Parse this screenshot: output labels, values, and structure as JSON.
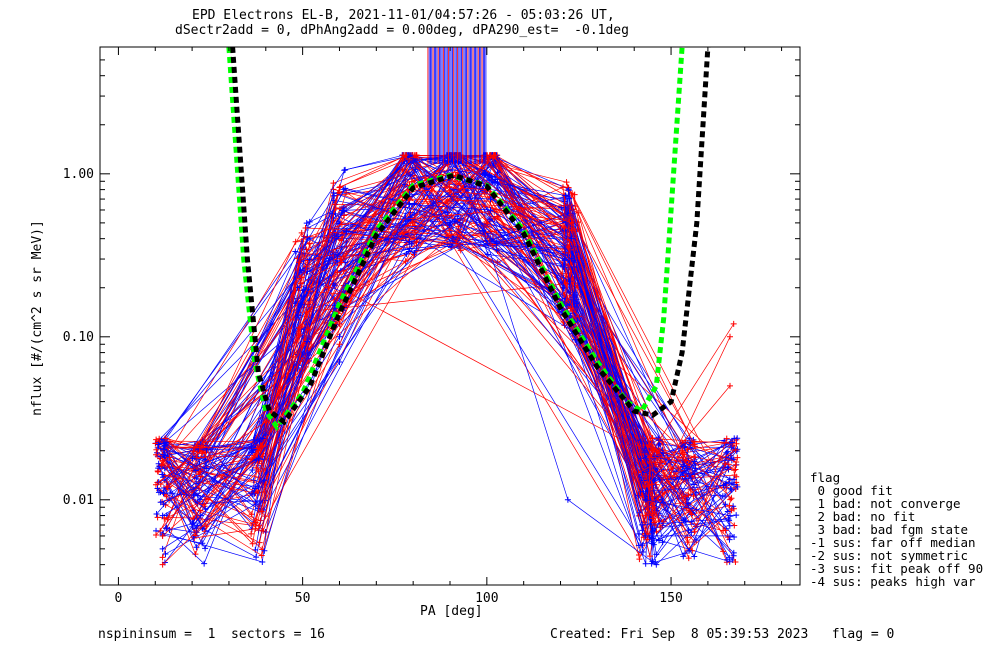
{
  "title_line1": "EPD Electrons EL-B, 2021-11-01/04:57:26 - 05:03:26 UT,",
  "title_line2": "dSectr2add = 0, dPhAng2add = 0.00deg, dPA290_est=  -0.1deg",
  "xlabel": "PA [deg]",
  "ylabel": "nflux [#/(cm^2 s sr MeV)]",
  "footer_left": "nspininsum =  1  sectors = 16",
  "footer_right": "Created: Fri Sep  8 05:39:53 2023   flag = 0",
  "legend": {
    "title": "flag",
    "items": [
      " 0 good fit",
      " 1 bad: not converge",
      " 2 bad: no fit",
      " 3 bad: bad fgm state",
      "-1 sus: far off median",
      "-2 sus: not symmetric",
      "-3 sus: fit peak off 90",
      "-4 sus: peaks high var"
    ]
  },
  "colors": {
    "red": "#ff0000",
    "blue": "#0000ff",
    "green": "#00ff00",
    "black": "#000000"
  },
  "chart_data": {
    "type": "line",
    "title": "EPD Electrons EL-B, 2021-11-01/04:57:26 - 05:03:26 UT, dSectr2add = 0, dPhAng2add = 0.00deg, dPA290_est=  -0.1deg",
    "xlabel": "PA [deg]",
    "ylabel": "nflux [#/(cm^2 s sr MeV)]",
    "xlim": [
      -5,
      185
    ],
    "ylim": [
      0.003,
      6
    ],
    "yscale": "log",
    "xticks": [
      0,
      50,
      100,
      150
    ],
    "yticks": [
      0.01,
      0.1,
      1.0
    ],
    "ytick_labels": [
      "0.01",
      "0.10",
      "1.00"
    ],
    "pa_bins": [
      12,
      22,
      38,
      50,
      60,
      79,
      91,
      101,
      122,
      123,
      143,
      146,
      155,
      166
    ],
    "series": [
      {
        "color": "red",
        "x": [
          12,
          38,
          60,
          79,
          101,
          123,
          143,
          166
        ],
        "y": [
          0.006,
          0.02,
          0.12,
          0.8,
          0.75,
          0.45,
          0.012,
          0.05
        ]
      },
      {
        "color": "red",
        "x": [
          12,
          38,
          60,
          79,
          101,
          123,
          143,
          166
        ],
        "y": [
          0.004,
          0.015,
          0.09,
          0.7,
          0.68,
          0.38,
          0.008,
          0.1
        ]
      },
      {
        "color": "red",
        "x": [
          13,
          40,
          57,
          79,
          100,
          123,
          145,
          167
        ],
        "y": [
          0.012,
          0.03,
          0.2,
          0.85,
          0.8,
          0.5,
          0.02,
          0.12
        ]
      },
      {
        "color": "blue",
        "x": [
          12,
          38,
          60,
          79,
          101,
          123,
          143,
          166
        ],
        "y": [
          0.008,
          0.018,
          0.1,
          0.75,
          0.7,
          0.4,
          0.01,
          0.008
        ]
      },
      {
        "color": "blue",
        "x": [
          12,
          38,
          60,
          79,
          101,
          123,
          143,
          166
        ],
        "y": [
          0.005,
          0.012,
          0.07,
          0.65,
          0.6,
          0.3,
          0.006,
          0.006
        ]
      },
      {
        "color": "blue",
        "x": [
          14,
          40,
          59,
          80,
          99,
          122,
          146,
          168
        ],
        "y": [
          0.011,
          0.025,
          0.15,
          1.2,
          0.45,
          0.01,
          0.004,
          0.012
        ]
      }
    ],
    "fit_curves": [
      {
        "color": "green",
        "style": "dashed",
        "x": [
          30,
          34,
          37,
          40,
          43,
          50,
          60,
          70,
          80,
          90,
          100,
          110,
          120,
          130,
          138,
          142,
          146,
          148,
          150,
          153
        ],
        "y": [
          6,
          0.3,
          0.07,
          0.035,
          0.028,
          0.045,
          0.16,
          0.45,
          0.85,
          0.98,
          0.85,
          0.45,
          0.16,
          0.07,
          0.04,
          0.035,
          0.05,
          0.13,
          0.6,
          6
        ]
      },
      {
        "color": "black",
        "style": "dashed",
        "x": [
          31,
          35,
          38,
          41,
          45,
          52,
          60,
          70,
          80,
          91,
          100,
          110,
          120,
          130,
          140,
          145,
          150,
          153,
          157,
          160
        ],
        "y": [
          6,
          0.3,
          0.06,
          0.035,
          0.03,
          0.05,
          0.14,
          0.42,
          0.82,
          0.98,
          0.84,
          0.43,
          0.15,
          0.065,
          0.035,
          0.033,
          0.04,
          0.08,
          0.5,
          6
        ]
      }
    ],
    "grid": false,
    "legend_position": "right"
  }
}
